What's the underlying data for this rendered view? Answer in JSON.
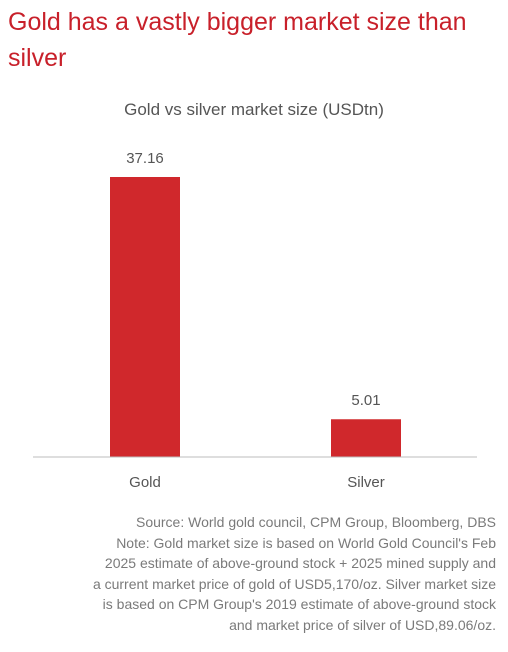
{
  "header": {
    "title": "Gold has a vastly bigger market size than silver"
  },
  "chart_data": {
    "type": "bar",
    "title": "Gold vs silver market size (USDtn)",
    "categories": [
      "Gold",
      "Silver"
    ],
    "values": [
      37.16,
      5.01
    ],
    "value_labels": [
      "37.16",
      "5.01"
    ],
    "xlabel": "",
    "ylabel": "",
    "ylim": [
      0,
      37.16
    ],
    "grid": false,
    "legend": "none",
    "bar_color": "#d0282c"
  },
  "footer": {
    "lines": [
      "Source: World gold council, CPM Group, Bloomberg, DBS",
      "Note: Gold market size is based on World Gold Council's Feb",
      "2025 estimate of above-ground stock + 2025 mined supply and",
      "a current market price of gold of USD5,170/oz. Silver market size",
      "is based on CPM Group's 2019 estimate of above-ground stock",
      "and market price of silver of USD,89.06/oz."
    ]
  }
}
